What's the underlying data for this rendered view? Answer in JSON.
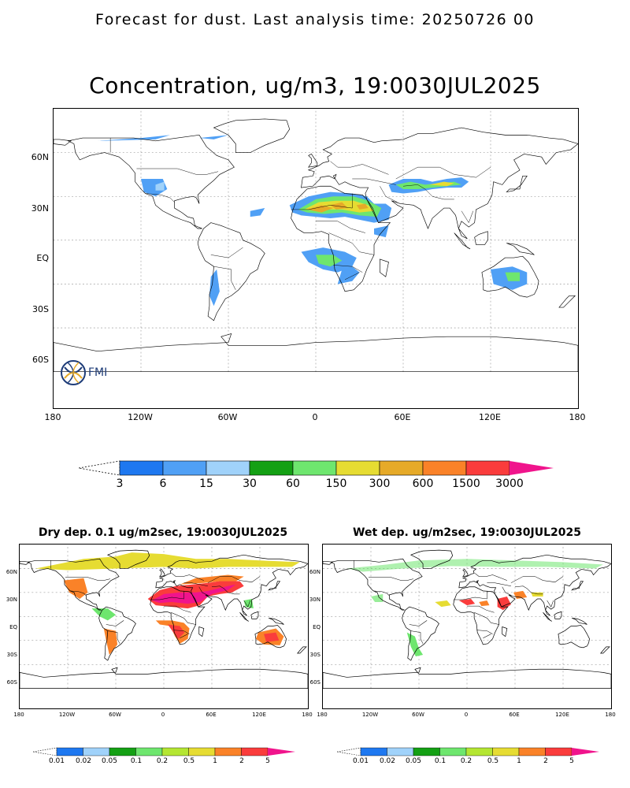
{
  "header": "Forecast for dust. Last analysis time: 20250726 00",
  "main": {
    "title": "Concentration, ug/m3, 19:0030JUL2025",
    "lat_labels": [
      "60N",
      "30N",
      "EQ",
      "30S",
      "60S"
    ],
    "lon_labels": [
      "180",
      "120W",
      "60W",
      "0",
      "60E",
      "120E",
      "180"
    ],
    "logo_text": "FMI",
    "colorbar_labels": [
      "3",
      "6",
      "15",
      "30",
      "60",
      "150",
      "300",
      "600",
      "1500",
      "3000"
    ],
    "colorbar_colors": [
      "#1e78f0",
      "#50a0f5",
      "#a0d2fa",
      "#14a014",
      "#6ee66e",
      "#e6dc32",
      "#e6aa28",
      "#fa8228",
      "#fa3c3c",
      "#f0148c"
    ]
  },
  "dry": {
    "title": "Dry dep. 0.1 ug/m2sec, 19:0030JUL2025",
    "lat_labels": [
      "60N",
      "30N",
      "EQ",
      "30S",
      "60S"
    ],
    "lon_labels": [
      "180",
      "120W",
      "60W",
      "0",
      "60E",
      "120E",
      "180"
    ],
    "colorbar_labels": [
      "0.01",
      "0.02",
      "0.05",
      "0.1",
      "0.2",
      "0.5",
      "1",
      "2",
      "5"
    ]
  },
  "wet": {
    "title": "Wet dep. ug/m2sec, 19:0030JUL2025",
    "lat_labels": [
      "60N",
      "30N",
      "EQ",
      "30S",
      "60S"
    ],
    "lon_labels": [
      "180",
      "120W",
      "60W",
      "0",
      "60E",
      "120E",
      "180"
    ],
    "colorbar_labels": [
      "0.01",
      "0.02",
      "0.05",
      "0.1",
      "0.2",
      "0.5",
      "1",
      "2",
      "5"
    ]
  }
}
